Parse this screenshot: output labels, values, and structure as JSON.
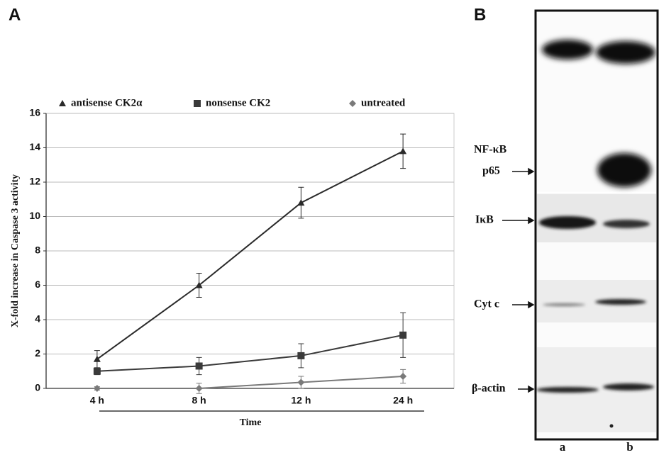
{
  "chart_data": {
    "type": "line",
    "ylabel": "X-fold increase in Caspase 3 activity",
    "xlabel": "Time",
    "categories": [
      "4 h",
      "8 h",
      "12 h",
      "24 h"
    ],
    "series": [
      {
        "name": "antisense CK2α",
        "color": "#2a2a2a",
        "marker": "triangle",
        "values": [
          1.7,
          6.0,
          10.8,
          13.8
        ],
        "errors": [
          0.5,
          0.7,
          0.9,
          1.0
        ]
      },
      {
        "name": "nonsense CK2",
        "color": "#3a3a3a",
        "marker": "square",
        "values": [
          1.0,
          1.3,
          1.9,
          3.1
        ],
        "errors": [
          0.2,
          0.5,
          0.7,
          1.3
        ]
      },
      {
        "name": "untreated",
        "color": "#7a7a7a",
        "marker": "diamond",
        "values": [
          0,
          0,
          0.35,
          0.7
        ],
        "errors": [
          0.1,
          0.3,
          0.35,
          0.4
        ]
      }
    ],
    "ylim": [
      0,
      16
    ],
    "yticks": [
      0,
      2,
      4,
      6,
      8,
      10,
      12,
      14,
      16
    ],
    "grid": true
  },
  "figure": {
    "panel_labels": [
      "A",
      "B"
    ],
    "blot": {
      "labels": [
        "NF-κB",
        "p65",
        "IκB",
        "Cyt c",
        "β-actin"
      ],
      "lanes": [
        "a",
        "b"
      ]
    }
  }
}
